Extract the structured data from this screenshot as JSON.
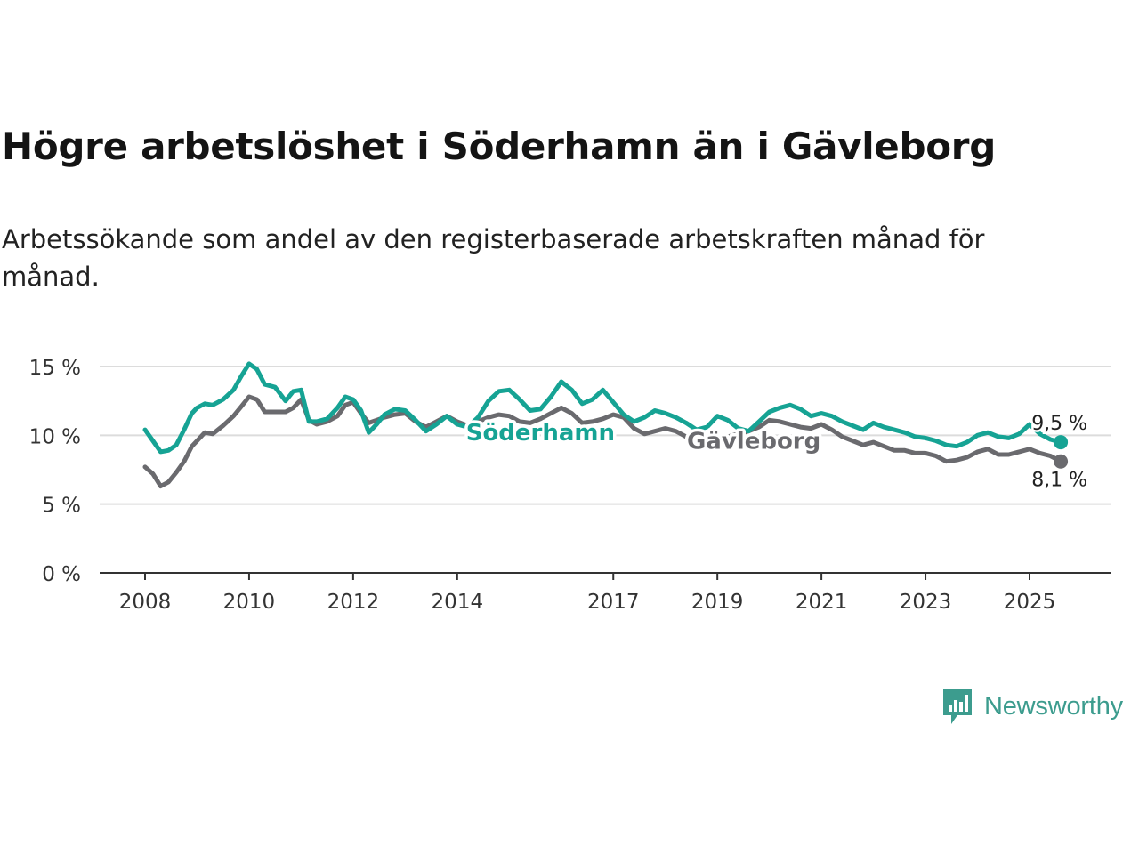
{
  "title": "Högre arbetslöshet i Söderhamn än i Gävleborg",
  "subtitle": "Arbetssökande som andel av den registerbaserade arbetskraften månad för månad.",
  "brand": {
    "name": "Newsworthy",
    "color": "#3c9c8e",
    "icon": "chart-bars-icon"
  },
  "chart_data": {
    "type": "line",
    "x_unit": "year",
    "xlim": [
      2007.2,
      2026.6
    ],
    "ylim": [
      0,
      15
    ],
    "y_ticks": [
      {
        "value": 0,
        "label": "0 %"
      },
      {
        "value": 5,
        "label": "5 %"
      },
      {
        "value": 10,
        "label": "10 %"
      },
      {
        "value": 15,
        "label": "15 %"
      }
    ],
    "x_ticks": [
      {
        "value": 2008,
        "label": "2008"
      },
      {
        "value": 2010,
        "label": "2010"
      },
      {
        "value": 2012,
        "label": "2012"
      },
      {
        "value": 2014,
        "label": "2014"
      },
      {
        "value": 2017,
        "label": "2017"
      },
      {
        "value": 2019,
        "label": "2019"
      },
      {
        "value": 2021,
        "label": "2021"
      },
      {
        "value": 2023,
        "label": "2023"
      },
      {
        "value": 2025,
        "label": "2025"
      }
    ],
    "grid": true,
    "series": [
      {
        "name": "Söderhamn",
        "color": "#16a394",
        "label_at": [
          2015.6,
          10.2
        ],
        "end_label": "9,5 %",
        "x": [
          2008.0,
          2008.15,
          2008.3,
          2008.45,
          2008.6,
          2008.75,
          2008.9,
          2009.0,
          2009.15,
          2009.3,
          2009.5,
          2009.7,
          2009.85,
          2010.0,
          2010.15,
          2010.3,
          2010.5,
          2010.7,
          2010.85,
          2011.0,
          2011.15,
          2011.3,
          2011.5,
          2011.7,
          2011.85,
          2012.0,
          2012.15,
          2012.3,
          2012.45,
          2012.6,
          2012.8,
          2013.0,
          2013.2,
          2013.4,
          2013.6,
          2013.8,
          2014.0,
          2014.2,
          2014.4,
          2014.6,
          2014.8,
          2015.0,
          2015.2,
          2015.4,
          2015.6,
          2015.8,
          2016.0,
          2016.2,
          2016.4,
          2016.6,
          2016.8,
          2017.0,
          2017.2,
          2017.4,
          2017.6,
          2017.8,
          2018.0,
          2018.2,
          2018.4,
          2018.6,
          2018.8,
          2019.0,
          2019.2,
          2019.4,
          2019.6,
          2019.8,
          2020.0,
          2020.2,
          2020.4,
          2020.6,
          2020.8,
          2021.0,
          2021.2,
          2021.4,
          2021.6,
          2021.8,
          2022.0,
          2022.2,
          2022.4,
          2022.6,
          2022.8,
          2023.0,
          2023.2,
          2023.4,
          2023.6,
          2023.8,
          2024.0,
          2024.2,
          2024.4,
          2024.6,
          2024.8,
          2025.0,
          2025.2,
          2025.4,
          2025.6
        ],
        "values": [
          10.4,
          9.6,
          8.8,
          8.9,
          9.3,
          10.4,
          11.6,
          12.0,
          12.3,
          12.2,
          12.6,
          13.3,
          14.3,
          15.2,
          14.8,
          13.7,
          13.5,
          12.5,
          13.2,
          13.3,
          11.0,
          11.0,
          11.2,
          12.0,
          12.8,
          12.6,
          11.8,
          10.2,
          10.8,
          11.5,
          11.9,
          11.8,
          11.1,
          10.3,
          10.8,
          11.4,
          10.8,
          10.6,
          11.3,
          12.5,
          13.2,
          13.3,
          12.6,
          11.8,
          11.9,
          12.8,
          13.9,
          13.3,
          12.3,
          12.6,
          13.3,
          12.4,
          11.5,
          11.0,
          11.3,
          11.8,
          11.6,
          11.3,
          10.9,
          10.4,
          10.6,
          11.4,
          11.1,
          10.5,
          10.3,
          11.0,
          11.7,
          12.0,
          12.2,
          11.9,
          11.4,
          11.6,
          11.4,
          11.0,
          10.7,
          10.4,
          10.9,
          10.6,
          10.4,
          10.2,
          9.9,
          9.8,
          9.6,
          9.3,
          9.2,
          9.5,
          10.0,
          10.2,
          9.9,
          9.8,
          10.1,
          10.8,
          10.1,
          9.7,
          9.5
        ]
      },
      {
        "name": "Gävleborg",
        "color": "#6a6a6e",
        "label_at": [
          2019.7,
          9.6
        ],
        "end_label": "8,1 %",
        "x": [
          2008.0,
          2008.15,
          2008.3,
          2008.45,
          2008.6,
          2008.75,
          2008.9,
          2009.0,
          2009.15,
          2009.3,
          2009.5,
          2009.7,
          2009.85,
          2010.0,
          2010.15,
          2010.3,
          2010.5,
          2010.7,
          2010.85,
          2011.0,
          2011.15,
          2011.3,
          2011.5,
          2011.7,
          2011.85,
          2012.0,
          2012.15,
          2012.3,
          2012.45,
          2012.6,
          2012.8,
          2013.0,
          2013.2,
          2013.4,
          2013.6,
          2013.8,
          2014.0,
          2014.2,
          2014.4,
          2014.6,
          2014.8,
          2015.0,
          2015.2,
          2015.4,
          2015.6,
          2015.8,
          2016.0,
          2016.2,
          2016.4,
          2016.6,
          2016.8,
          2017.0,
          2017.2,
          2017.4,
          2017.6,
          2017.8,
          2018.0,
          2018.2,
          2018.4,
          2018.6,
          2018.8,
          2019.0,
          2019.2,
          2019.4,
          2019.6,
          2019.8,
          2020.0,
          2020.2,
          2020.4,
          2020.6,
          2020.8,
          2021.0,
          2021.2,
          2021.4,
          2021.6,
          2021.8,
          2022.0,
          2022.2,
          2022.4,
          2022.6,
          2022.8,
          2023.0,
          2023.2,
          2023.4,
          2023.6,
          2023.8,
          2024.0,
          2024.2,
          2024.4,
          2024.6,
          2024.8,
          2025.0,
          2025.2,
          2025.4,
          2025.6
        ],
        "values": [
          7.7,
          7.2,
          6.3,
          6.6,
          7.3,
          8.1,
          9.2,
          9.6,
          10.2,
          10.1,
          10.7,
          11.4,
          12.1,
          12.8,
          12.6,
          11.7,
          11.7,
          11.7,
          12.0,
          12.6,
          11.1,
          10.8,
          11.0,
          11.4,
          12.2,
          12.4,
          11.6,
          10.9,
          11.1,
          11.3,
          11.5,
          11.6,
          11.0,
          10.6,
          11.0,
          11.4,
          11.0,
          10.7,
          11.0,
          11.3,
          11.5,
          11.4,
          11.0,
          10.9,
          11.2,
          11.6,
          12.0,
          11.6,
          10.9,
          11.0,
          11.2,
          11.5,
          11.3,
          10.5,
          10.1,
          10.3,
          10.5,
          10.3,
          9.9,
          9.5,
          9.2,
          9.6,
          9.9,
          10.1,
          10.3,
          10.6,
          11.1,
          11.0,
          10.8,
          10.6,
          10.5,
          10.8,
          10.4,
          9.9,
          9.6,
          9.3,
          9.5,
          9.2,
          8.9,
          8.9,
          8.7,
          8.7,
          8.5,
          8.1,
          8.2,
          8.4,
          8.8,
          9.0,
          8.6,
          8.6,
          8.8,
          9.0,
          8.7,
          8.5,
          8.1
        ]
      }
    ]
  }
}
